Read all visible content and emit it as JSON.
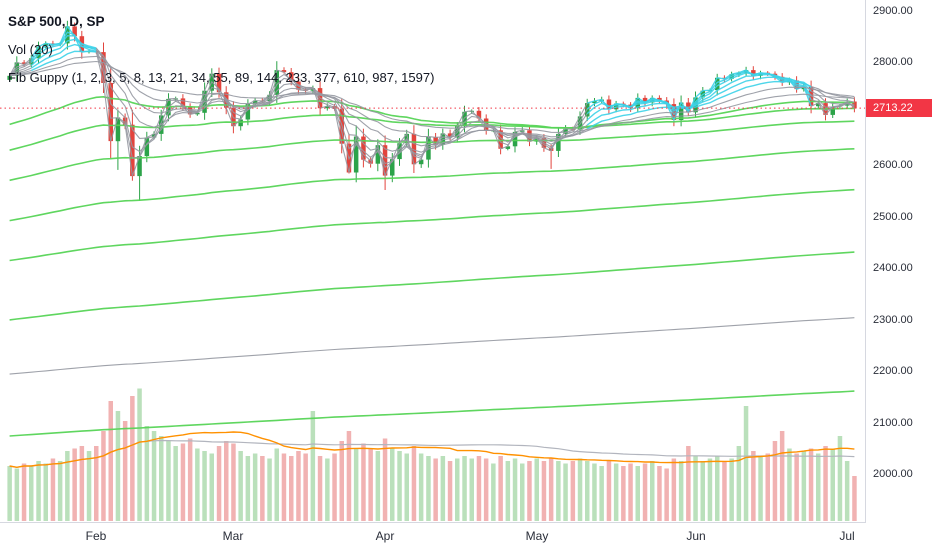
{
  "chart_data": {
    "type": "candlestick",
    "title": "S&P 500, D, SP",
    "last_price": 2713.22,
    "last_price_label": "2713.22",
    "y_axis": {
      "ticks": [
        2900,
        2800,
        2700,
        2600,
        2500,
        2400,
        2300,
        2200,
        2100,
        2000
      ]
    },
    "x_axis": {
      "months": [
        {
          "label": "Feb",
          "index": 12
        },
        {
          "label": "Mar",
          "index": 31
        },
        {
          "label": "Apr",
          "index": 52
        },
        {
          "label": "May",
          "index": 73
        },
        {
          "label": "Jun",
          "index": 95
        },
        {
          "label": "Jul",
          "index": 116
        }
      ]
    },
    "closes": [
      2776,
      2802,
      2798,
      2810,
      2833,
      2839,
      2837,
      2839,
      2872,
      2853,
      2822,
      2824,
      2822,
      2762,
      2649,
      2695,
      2681,
      2581,
      2620,
      2656,
      2663,
      2699,
      2731,
      2732,
      2716,
      2701,
      2704,
      2747,
      2780,
      2744,
      2714,
      2678,
      2691,
      2721,
      2728,
      2727,
      2739,
      2787,
      2783,
      2765,
      2749,
      2747,
      2752,
      2713,
      2717,
      2712,
      2644,
      2588,
      2658,
      2613,
      2605,
      2641,
      2582,
      2614,
      2645,
      2663,
      2604,
      2613,
      2657,
      2642,
      2664,
      2656,
      2678,
      2706,
      2708,
      2693,
      2670,
      2670,
      2634,
      2639,
      2667,
      2670,
      2648,
      2655,
      2636,
      2630,
      2663,
      2673,
      2672,
      2697,
      2723,
      2727,
      2730,
      2711,
      2722,
      2720,
      2713,
      2733,
      2724,
      2733,
      2728,
      2721,
      2690,
      2724,
      2705,
      2734,
      2747,
      2748,
      2772,
      2770,
      2779,
      2782,
      2787,
      2776,
      2782,
      2780,
      2774,
      2763,
      2767,
      2750,
      2755,
      2717,
      2723,
      2700,
      2716,
      2718,
      2726,
      2713.22
    ],
    "volumes": [
      2.2,
      2.1,
      2.3,
      2.2,
      2.4,
      2.3,
      2.5,
      2.4,
      2.8,
      2.9,
      3.0,
      2.8,
      3.0,
      3.6,
      4.8,
      4.4,
      4.0,
      5.0,
      5.3,
      3.8,
      3.6,
      3.4,
      3.2,
      3.0,
      3.1,
      3.3,
      2.9,
      2.8,
      2.7,
      3.0,
      3.2,
      3.1,
      2.8,
      2.6,
      2.7,
      2.6,
      2.5,
      2.9,
      2.7,
      2.6,
      2.8,
      2.7,
      4.4,
      2.6,
      2.5,
      2.7,
      3.2,
      3.6,
      2.9,
      3.1,
      2.9,
      2.8,
      3.3,
      2.9,
      2.8,
      2.7,
      3.0,
      2.7,
      2.6,
      2.5,
      2.6,
      2.4,
      2.5,
      2.6,
      2.5,
      2.6,
      2.5,
      2.3,
      2.6,
      2.4,
      2.5,
      2.3,
      2.4,
      2.5,
      2.4,
      2.5,
      2.4,
      2.3,
      2.4,
      2.5,
      2.4,
      2.3,
      2.2,
      2.4,
      2.3,
      2.2,
      2.3,
      2.2,
      2.3,
      2.4,
      2.2,
      2.1,
      2.5,
      2.4,
      3.0,
      2.6,
      2.4,
      2.5,
      2.6,
      2.4,
      2.5,
      3.0,
      4.6,
      2.8,
      2.6,
      2.7,
      3.2,
      3.6,
      2.9,
      2.7,
      2.8,
      2.9,
      2.7,
      3.0,
      2.9,
      3.4,
      2.4,
      1.8
    ],
    "wick_overrides": {
      "15": {
        "low": 2593
      },
      "17": {
        "low": 2572
      },
      "18": {
        "low": 2533,
        "high": 2640
      },
      "47": {
        "low": 2586
      },
      "52": {
        "low": 2554
      },
      "56": {
        "low": 2587
      },
      "75": {
        "low": 2595
      }
    },
    "seed": 7,
    "indicators": {
      "volume": {
        "label": "Vol (20)",
        "ma_period": 20,
        "slow_ma_period": 60
      },
      "fib_guppy": {
        "label": "Fib Guppy (1, 2, 3, 5, 8, 13, 21, 34, 55, 89, 144, 233, 377, 610, 987, 1597)",
        "periods": [
          1,
          2,
          3,
          5,
          8,
          13,
          21,
          34,
          55,
          89,
          144,
          233,
          377,
          610,
          987,
          1597
        ],
        "green_periods": [
          55,
          89,
          144,
          233,
          377,
          610,
          1597
        ],
        "seeds": {
          "55": 2678,
          "89": 2628,
          "144": 2570,
          "233": 2492,
          "377": 2415,
          "610": 2300,
          "987": 2195,
          "1597": 2075
        }
      }
    },
    "colors": {
      "up": "#2ca349",
      "down": "#e2443d",
      "vol_up": "#81c784",
      "vol_down": "#e57373",
      "vol_ma": "#ff9100",
      "vol_slow_ma": "#b2b5be",
      "guppy_gray": "#9598a1",
      "guppy_green": "#56d456",
      "guppy_aqua": "#3cd2e8",
      "last_price": "#f23645",
      "axis_text": "#2a2e39",
      "axis_border": "#d6d8e0"
    }
  }
}
